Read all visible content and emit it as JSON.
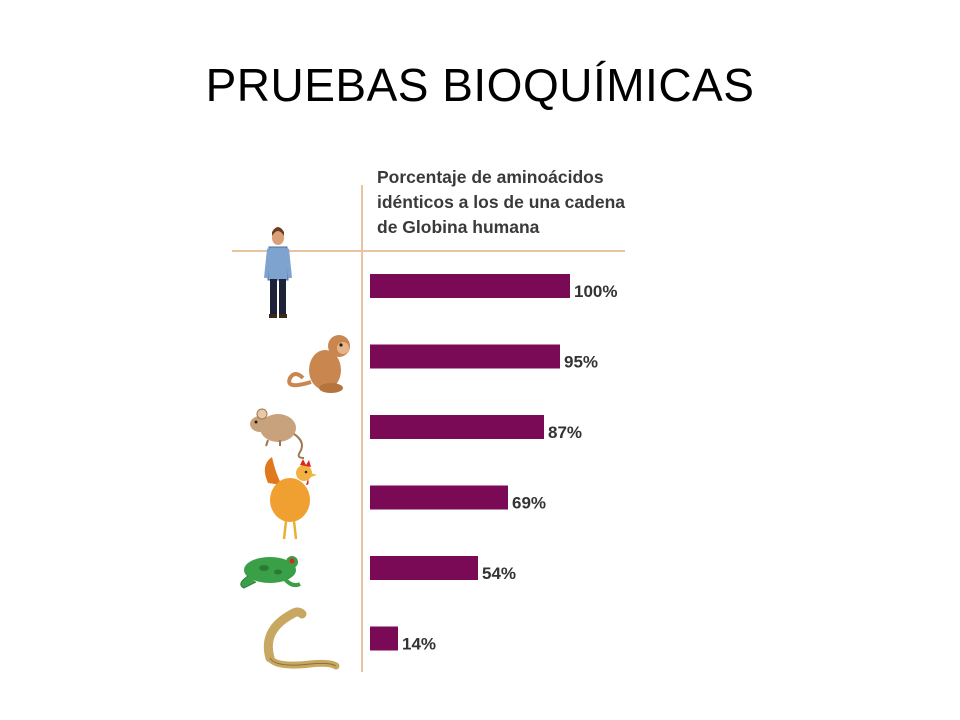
{
  "slide": {
    "title": "PRUEBAS BIOQUÍMICAS"
  },
  "chart_data": {
    "type": "bar",
    "orientation": "horizontal",
    "title_lines": [
      "Porcentaje de aminoácidos",
      "idénticos a los de una cadena",
      "de Globina humana"
    ],
    "categories": [
      "human-icon",
      "monkey-icon",
      "mouse-icon",
      "rooster-icon",
      "frog-icon",
      "lamprey-icon"
    ],
    "values": [
      100,
      95,
      87,
      69,
      54,
      14
    ],
    "labels": [
      "100%",
      "95%",
      "87%",
      "69%",
      "54%",
      "14%"
    ],
    "xlim": [
      0,
      100
    ],
    "bar_color": "#7a0a55",
    "axis_color": "#e8c3a0",
    "grid": false,
    "legend": "none"
  }
}
